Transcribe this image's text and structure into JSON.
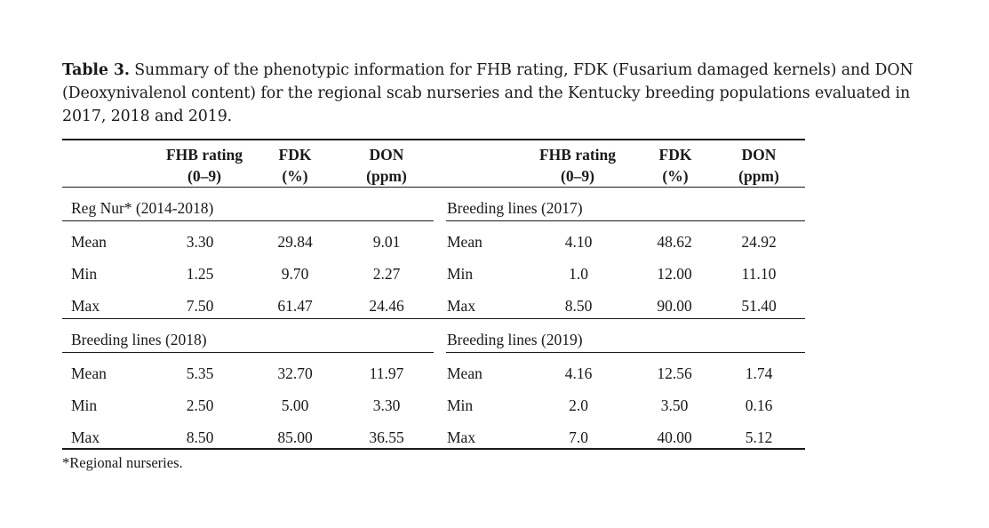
{
  "caption": {
    "label": "Table 3.",
    "text": " Summary of the phenotypic information for FHB rating, FDK (Fusarium damaged kernels) and DON (Deoxynivalenol content) for the regional scab nurseries and the Kentucky breeding populations evaluated in 2017, 2018 and 2019."
  },
  "headers": {
    "left": [
      {
        "line1": "FHB rating",
        "line2": "(0–9)"
      },
      {
        "line1": "FDK",
        "line2": "(%)"
      },
      {
        "line1": "DON",
        "line2": "(ppm)"
      }
    ],
    "right": [
      {
        "line1": "FHB rating",
        "line2": "(0–9)"
      },
      {
        "line1": "FDK",
        "line2": "(%)"
      },
      {
        "line1": "DON",
        "line2": "(ppm)"
      }
    ]
  },
  "groups": [
    {
      "left": {
        "title": "Reg Nur* (2014-2018)",
        "rows": [
          {
            "stat": "Mean",
            "values": [
              "3.30",
              "29.84",
              "9.01"
            ]
          },
          {
            "stat": "Min",
            "values": [
              "1.25",
              "9.70",
              "2.27"
            ]
          },
          {
            "stat": "Max",
            "values": [
              "7.50",
              "61.47",
              "24.46"
            ]
          }
        ]
      },
      "right": {
        "title": "Breeding lines (2017)",
        "rows": [
          {
            "stat": "Mean",
            "values": [
              "4.10",
              "48.62",
              "24.92"
            ]
          },
          {
            "stat": "Min",
            "values": [
              "1.0",
              "12.00",
              "11.10"
            ]
          },
          {
            "stat": "Max",
            "values": [
              "8.50",
              "90.00",
              "51.40"
            ]
          }
        ]
      }
    },
    {
      "left": {
        "title": "Breeding lines (2018)",
        "rows": [
          {
            "stat": "Mean",
            "values": [
              "5.35",
              "32.70",
              "11.97"
            ]
          },
          {
            "stat": "Min",
            "values": [
              "2.50",
              "5.00",
              "3.30"
            ]
          },
          {
            "stat": "Max",
            "values": [
              "8.50",
              "85.00",
              "36.55"
            ]
          }
        ]
      },
      "right": {
        "title": "Breeding lines (2019)",
        "rows": [
          {
            "stat": "Mean",
            "values": [
              "4.16",
              "12.56",
              "1.74"
            ]
          },
          {
            "stat": "Min",
            "values": [
              "2.0",
              "3.50",
              "0.16"
            ]
          },
          {
            "stat": "Max",
            "values": [
              "7.0",
              "40.00",
              "5.12"
            ]
          }
        ]
      }
    }
  ],
  "footnote": "*Regional nurseries."
}
